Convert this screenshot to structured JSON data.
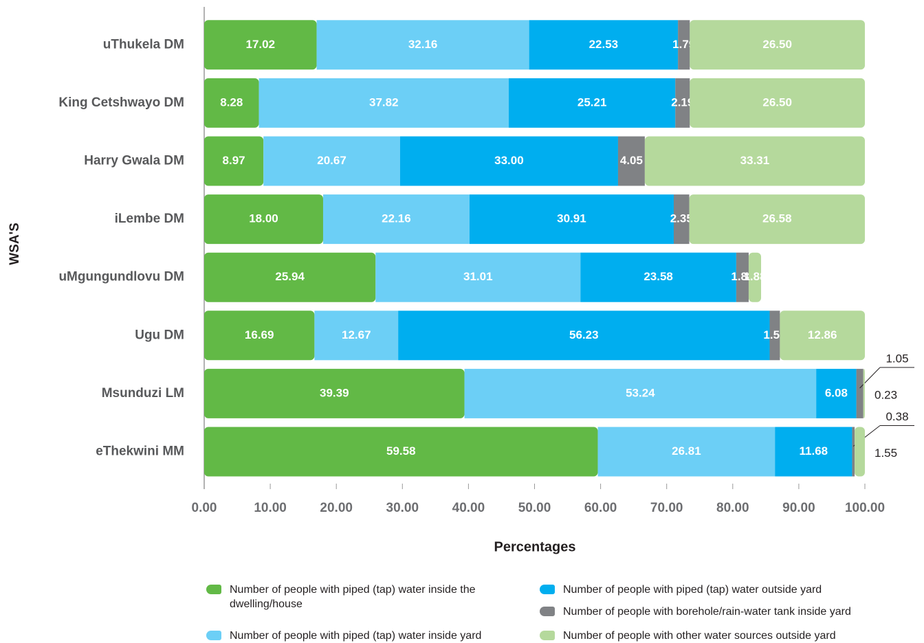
{
  "chart_data": {
    "type": "stacked_barh",
    "xlabel": "Percentages",
    "ylabel": "WSA'S",
    "categories": [
      "uThukela DM",
      "King Cetshwayo DM",
      "Harry Gwala DM",
      "iLembe DM",
      "uMgungundlovu DM",
      "Ugu DM",
      "Msunduzi LM",
      "eThekwini MM"
    ],
    "series": [
      {
        "name": "Number of people with piped (tap) water inside the dwelling/house",
        "color": "#62b946",
        "values": [
          17.02,
          8.28,
          8.97,
          18.0,
          25.94,
          16.69,
          39.39,
          59.58
        ],
        "value_labels": [
          "17.02",
          "8.28",
          "8.97",
          "18.00",
          "25.94",
          "16.69",
          "39.39",
          "59.58"
        ]
      },
      {
        "name": "Number of people with piped (tap) water inside yard",
        "color": "#6ccff6",
        "values": [
          32.16,
          37.82,
          20.67,
          22.16,
          31.01,
          12.67,
          53.24,
          26.81
        ],
        "value_labels": [
          "32.16",
          "37.82",
          "20.67",
          "22.16",
          "31.01",
          "12.67",
          "53.24",
          "26.81"
        ]
      },
      {
        "name": "Number of people with piped (tap) water outside yard",
        "color": "#00aeef",
        "values": [
          22.53,
          25.21,
          33.0,
          30.91,
          23.58,
          56.23,
          6.08,
          11.68
        ],
        "value_labels": [
          "22.53",
          "25.21",
          "33.00",
          "30.91",
          "23.58",
          "56.23",
          "6.08",
          "11.68"
        ]
      },
      {
        "name": "Number of people with borehole/rain-water tank inside yard",
        "color": "#808285",
        "values": [
          1.79,
          2.19,
          4.05,
          2.35,
          1.88,
          1.55,
          1.05,
          0.38
        ]
      },
      {
        "name": "Number of people with other water sources outside yard",
        "color": "#b5d99c",
        "values": [
          26.5,
          26.5,
          33.31,
          26.58,
          1.88,
          12.86,
          0.23,
          1.55
        ],
        "value_labels": [
          "26.50",
          "26.50",
          "33.31",
          "26.58",
          "1.88",
          "12.86",
          "0.23",
          "1.55"
        ]
      }
    ],
    "xlim": [
      0,
      100
    ],
    "xticks": [
      {
        "value": 0,
        "label": "0.00"
      },
      {
        "value": 10,
        "label": "10.00"
      },
      {
        "value": 20,
        "label": "20.00"
      },
      {
        "value": 30,
        "label": "30.00"
      },
      {
        "value": 40,
        "label": "40.00"
      },
      {
        "value": 50,
        "label": "50.00"
      },
      {
        "value": 60,
        "label": "60.00"
      },
      {
        "value": 70,
        "label": "70.00"
      },
      {
        "value": 80,
        "label": "80.00"
      },
      {
        "value": 90,
        "label": "90.00"
      },
      {
        "value": 100,
        "label": "100.00"
      }
    ]
  }
}
